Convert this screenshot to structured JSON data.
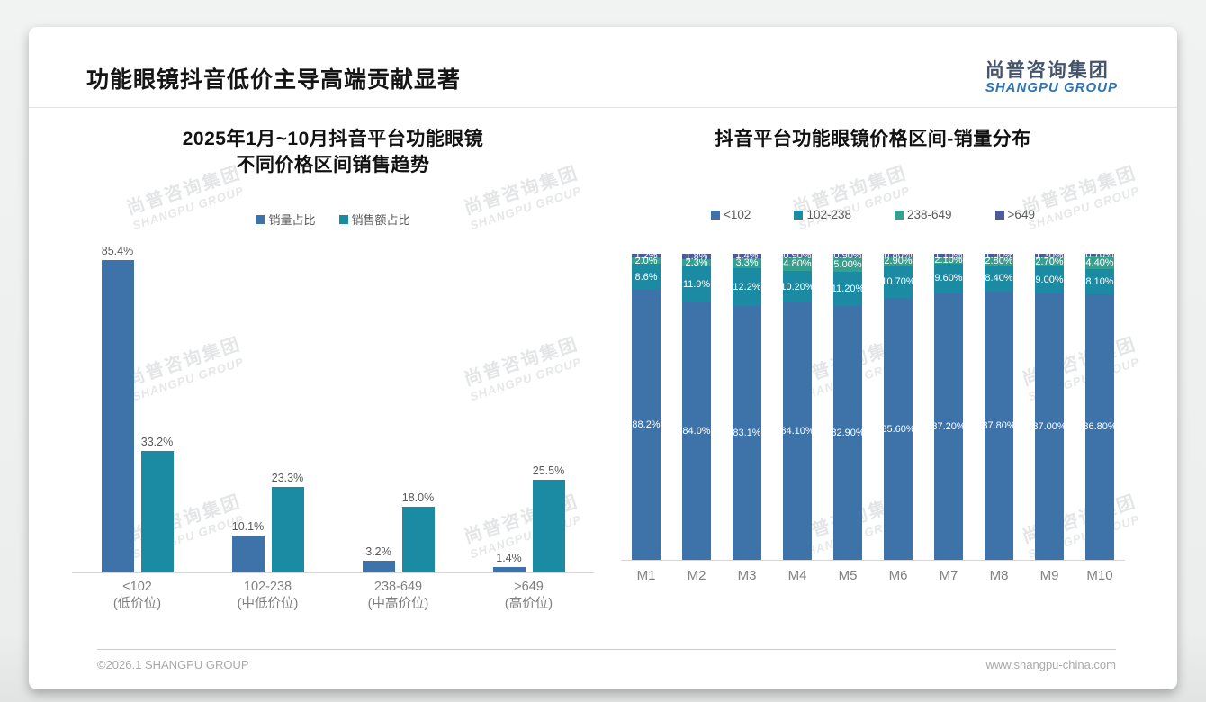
{
  "header": {
    "title": "功能眼镜抖音低价主导高端贡献显著",
    "logo_cn": "尚普咨询集团",
    "logo_en": "SHANGPU GROUP"
  },
  "watermark": {
    "line1": "尚普咨询集团",
    "line2": "SHANGPU GROUP"
  },
  "footer": {
    "left": "©2026.1 SHANGPU GROUP",
    "right": "www.shangpu-china.com"
  },
  "colors": {
    "blue": "#3d73a8",
    "teal": "#1b8ba3",
    "green": "#35a08f",
    "navy": "#4d5c99",
    "logo_cn": "#44546a",
    "logo_en": "#2e74b5"
  },
  "chart_data": [
    {
      "type": "bar",
      "title_line1": "2025年1月~10月抖音平台功能眼镜",
      "title_line2": "不同价格区间销售趋势",
      "legend_position": "top",
      "grid": false,
      "ylim": [
        0,
        90
      ],
      "categories": [
        "<102",
        "102-238",
        "238-649",
        ">649"
      ],
      "category_sublabels": [
        "(低价位)",
        "(中低价位)",
        "(中高价位)",
        "(高价位)"
      ],
      "series": [
        {
          "name": "销量占比",
          "color": "#3d73a8",
          "values": [
            85.4,
            10.1,
            3.2,
            1.4
          ],
          "labels": [
            "85.4%",
            "10.1%",
            "3.2%",
            "1.4%"
          ]
        },
        {
          "name": "销售额占比",
          "color": "#1b8ba3",
          "values": [
            33.2,
            23.3,
            18.0,
            25.5
          ],
          "labels": [
            "33.2%",
            "23.3%",
            "18.0%",
            "25.5%"
          ]
        }
      ]
    },
    {
      "type": "stacked-bar",
      "title": "抖音平台功能眼镜价格区间-销量分布",
      "legend_position": "top",
      "grid": false,
      "ylim": [
        0,
        100
      ],
      "categories": [
        "M1",
        "M2",
        "M3",
        "M4",
        "M5",
        "M6",
        "M7",
        "M8",
        "M9",
        "M10"
      ],
      "series": [
        {
          "name": "<102",
          "color": "#3d73a8",
          "values": [
            88.2,
            84.0,
            83.1,
            84.1,
            82.9,
            85.6,
            87.2,
            87.8,
            87.0,
            86.8
          ],
          "labels": [
            "88.2%",
            "84.0%",
            "83.1%",
            "84.10%",
            "82.90%",
            "85.60%",
            "87.20%",
            "87.80%",
            "87.00%",
            "86.80%"
          ]
        },
        {
          "name": "102-238",
          "color": "#1b8ba3",
          "values": [
            8.6,
            11.9,
            12.2,
            10.2,
            11.2,
            10.7,
            9.6,
            8.4,
            9.0,
            8.1
          ],
          "labels": [
            "8.6%",
            "11.9%",
            "12.2%",
            "10.20%",
            "11.20%",
            "10.70%",
            "9.60%",
            "8.40%",
            "9.00%",
            "8.10%"
          ]
        },
        {
          "name": "238-649",
          "color": "#35a08f",
          "values": [
            2.0,
            2.3,
            3.3,
            4.8,
            5.0,
            2.9,
            2.1,
            2.8,
            2.7,
            4.4
          ],
          "labels": [
            "2.0%",
            "2.3%",
            "3.3%",
            "4.80%",
            "5.00%",
            "2.90%",
            "2.10%",
            "2.80%",
            "2.70%",
            "4.40%"
          ]
        },
        {
          "name": ">649",
          "color": "#4d5c99",
          "values": [
            1.2,
            1.8,
            1.4,
            0.9,
            0.9,
            0.8,
            1.1,
            1.0,
            1.3,
            0.7
          ],
          "labels": [
            "1.2%",
            "1.8%",
            "1.4%",
            "0.90%",
            "0.90%",
            "0.80%",
            "1.10%",
            "1.00%",
            "1.30%",
            "0.70%"
          ]
        }
      ]
    }
  ]
}
